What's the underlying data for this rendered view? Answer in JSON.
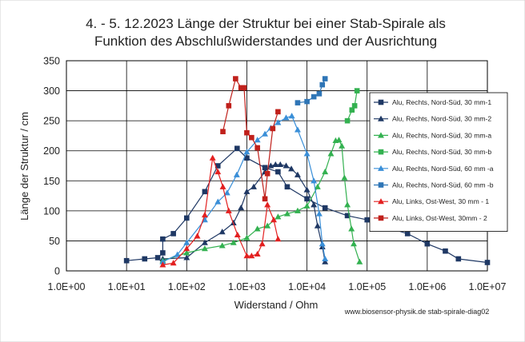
{
  "chart_data": {
    "type": "scatter",
    "title_line1": "4. - 5. 12.2023 Länge der Struktur bei einer Stab-Spirale als",
    "title_line2": "Funktion des Abschlußwiderstandes und der Ausrichtung",
    "xlabel": "Widerstand / Ohm",
    "ylabel": "Länge der Struktur / cm",
    "xscale": "log",
    "xlim": [
      1,
      10000000
    ],
    "ylim": [
      0,
      350
    ],
    "x_ticks": [
      1,
      10,
      100,
      1000,
      10000,
      100000,
      1000000,
      10000000
    ],
    "x_tick_labels": [
      "1.0E+00",
      "1.0E+01",
      "1.0E+02",
      "1.0E+03",
      "1.0E+04",
      "1.0E+05",
      "1.0E+06",
      "1.0E+07"
    ],
    "y_ticks": [
      0,
      50,
      100,
      150,
      200,
      250,
      300,
      350
    ],
    "grid": true,
    "legend_position": "right",
    "footer": "www.biosensor-physik.de  stab-spirale-diag02",
    "series": [
      {
        "name": "Alu, Rechts, Nord-Süd, 30 mm-1",
        "color": "#1f3864",
        "marker": "square",
        "points": [
          [
            10,
            17
          ],
          [
            20,
            20
          ],
          [
            33,
            22
          ],
          [
            40,
            30
          ],
          [
            40,
            53
          ],
          [
            60,
            62
          ],
          [
            100,
            88
          ],
          [
            200,
            132
          ],
          [
            330,
            175
          ],
          [
            690,
            204
          ],
          [
            1000,
            188
          ],
          [
            2000,
            172
          ],
          [
            3300,
            165
          ],
          [
            4700,
            140
          ],
          [
            10000,
            120
          ],
          [
            20000,
            105
          ],
          [
            47000,
            92
          ],
          [
            100000,
            85
          ],
          [
            200000,
            73
          ],
          [
            470000,
            62
          ],
          [
            1000000,
            45
          ],
          [
            2000000,
            33
          ],
          [
            3300000,
            20
          ],
          [
            10000000,
            14
          ]
        ]
      },
      {
        "name": "Alu, Rechts, Nord-Süd, 30 mm-2",
        "color": "#1f3864",
        "marker": "triangle",
        "points": [
          [
            40,
            20
          ],
          [
            100,
            22
          ],
          [
            200,
            47
          ],
          [
            390,
            65
          ],
          [
            600,
            80
          ],
          [
            800,
            105
          ],
          [
            1000,
            132
          ],
          [
            1300,
            140
          ],
          [
            2000,
            165
          ],
          [
            2500,
            175
          ],
          [
            3000,
            177
          ],
          [
            3600,
            177
          ],
          [
            4500,
            175
          ],
          [
            5500,
            170
          ],
          [
            7000,
            160
          ],
          [
            10000,
            135
          ],
          [
            13000,
            110
          ],
          [
            15000,
            75
          ],
          [
            18000,
            40
          ],
          [
            20000,
            15
          ]
        ]
      },
      {
        "name": "Alu, Rechts, Nord-Süd, 30 mm-a",
        "color": "#33b150",
        "marker": "triangle",
        "points": [
          [
            40,
            17
          ],
          [
            100,
            30
          ],
          [
            200,
            37
          ],
          [
            390,
            42
          ],
          [
            600,
            47
          ],
          [
            1000,
            55
          ],
          [
            1500,
            70
          ],
          [
            2200,
            75
          ],
          [
            3300,
            90
          ],
          [
            4700,
            95
          ],
          [
            7000,
            100
          ],
          [
            10000,
            108
          ],
          [
            15000,
            140
          ],
          [
            20000,
            165
          ],
          [
            25000,
            195
          ],
          [
            30000,
            217
          ],
          [
            34000,
            218
          ],
          [
            38000,
            208
          ],
          [
            42000,
            155
          ],
          [
            47000,
            110
          ],
          [
            55000,
            70
          ],
          [
            60000,
            45
          ],
          [
            75000,
            15
          ]
        ]
      },
      {
        "name": "Alu, Rechts, Nord-Süd, 30 mm-b",
        "color": "#33b150",
        "marker": "square",
        "points": [
          [
            47000,
            250
          ],
          [
            56000,
            268
          ],
          [
            62000,
            275
          ],
          [
            68000,
            300
          ]
        ]
      },
      {
        "name": "Alu, Rechts, Nord-Süd, 60 mm -a",
        "color": "#3a8fd8",
        "marker": "triangle",
        "points": [
          [
            40,
            15
          ],
          [
            70,
            27
          ],
          [
            100,
            47
          ],
          [
            200,
            85
          ],
          [
            330,
            115
          ],
          [
            470,
            130
          ],
          [
            680,
            160
          ],
          [
            1000,
            198
          ],
          [
            1500,
            218
          ],
          [
            2000,
            228
          ],
          [
            2500,
            238
          ],
          [
            3300,
            247
          ],
          [
            4500,
            255
          ],
          [
            5600,
            258
          ],
          [
            7000,
            235
          ],
          [
            10000,
            195
          ],
          [
            13000,
            150
          ],
          [
            16000,
            95
          ],
          [
            18000,
            45
          ],
          [
            20000,
            20
          ]
        ]
      },
      {
        "name": "Alu, Rechts, Nord-Süd, 60 mm -b",
        "color": "#2e75b6",
        "marker": "square",
        "points": [
          [
            7000,
            280
          ],
          [
            10000,
            282
          ],
          [
            13000,
            290
          ],
          [
            16000,
            295
          ],
          [
            18000,
            310
          ],
          [
            20000,
            320
          ]
        ]
      },
      {
        "name": "Alu, Links, Ost-West, 30 mm - 1",
        "color": "#e32020",
        "marker": "triangle",
        "points": [
          [
            40,
            10
          ],
          [
            60,
            13
          ],
          [
            100,
            37
          ],
          [
            150,
            58
          ],
          [
            200,
            93
          ],
          [
            270,
            188
          ],
          [
            330,
            165
          ],
          [
            400,
            140
          ],
          [
            500,
            100
          ],
          [
            700,
            60
          ],
          [
            1000,
            25
          ],
          [
            1200,
            25
          ],
          [
            1500,
            28
          ],
          [
            1800,
            45
          ],
          [
            2200,
            110
          ],
          [
            2800,
            85
          ],
          [
            3300,
            53
          ]
        ]
      },
      {
        "name": "Alu, Links, Ost-West, 30mm - 2",
        "color": "#c0201b",
        "marker": "square",
        "points": [
          [
            400,
            232
          ],
          [
            500,
            275
          ],
          [
            650,
            320
          ],
          [
            800,
            305
          ],
          [
            900,
            305
          ],
          [
            1000,
            230
          ],
          [
            1200,
            222
          ],
          [
            1500,
            205
          ],
          [
            2000,
            120
          ],
          [
            2200,
            162
          ],
          [
            2700,
            237
          ],
          [
            3300,
            265
          ]
        ]
      }
    ]
  }
}
